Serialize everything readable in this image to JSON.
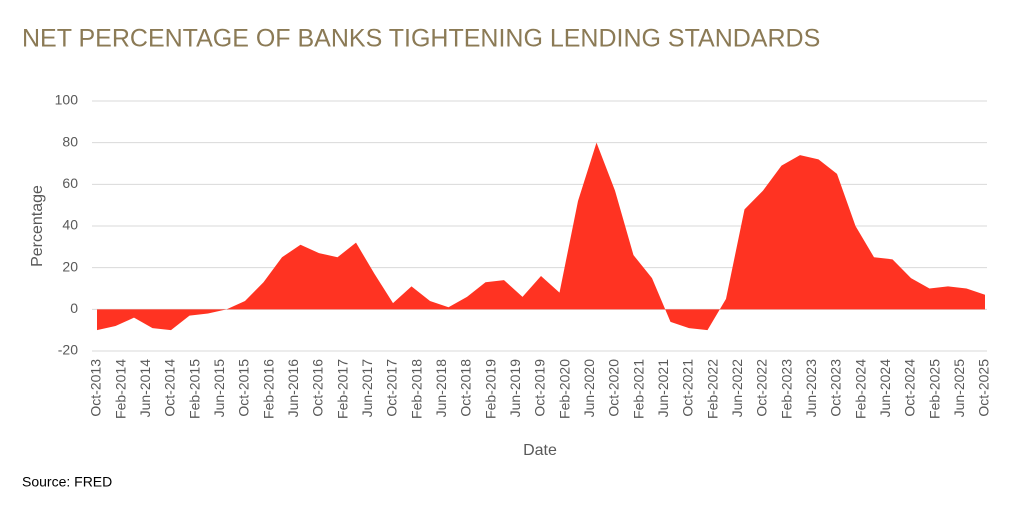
{
  "chart_data": {
    "type": "area",
    "title": "NET PERCENTAGE OF BANKS TIGHTENING LENDING STANDARDS",
    "x_label": "Date",
    "y_label": "Percentage",
    "source": "Source: FRED",
    "color": "#ff3322",
    "grid": true,
    "x": [
      "2013-10",
      "2014-01",
      "2014-04",
      "2014-07",
      "2014-10",
      "2015-01",
      "2015-04",
      "2015-07",
      "2015-10",
      "2016-01",
      "2016-04",
      "2016-07",
      "2016-10",
      "2017-01",
      "2017-04",
      "2017-07",
      "2017-10",
      "2018-01",
      "2018-04",
      "2018-07",
      "2018-10",
      "2019-01",
      "2019-04",
      "2019-07",
      "2019-10",
      "2020-01",
      "2020-04",
      "2020-07",
      "2020-10",
      "2021-01",
      "2021-04",
      "2021-07",
      "2021-10",
      "2022-01",
      "2022-04",
      "2022-07",
      "2022-10",
      "2023-01",
      "2023-04",
      "2023-07",
      "2023-10",
      "2024-01",
      "2024-04",
      "2024-07",
      "2024-10",
      "2025-01",
      "2025-04",
      "2025-07",
      "2025-10"
    ],
    "values": [
      -10,
      -8,
      -4,
      -9,
      -10,
      -3,
      -2,
      0,
      4,
      13,
      25,
      31,
      27,
      25,
      32,
      17,
      3,
      11,
      4,
      1,
      6,
      13,
      14,
      6,
      16,
      8,
      52,
      80,
      57,
      26,
      15,
      -6,
      -9,
      -10,
      5,
      48,
      57,
      69,
      74,
      72,
      65,
      40,
      25,
      24,
      15,
      10,
      11,
      10,
      7
    ],
    "xlim": [
      "2013-10",
      "2025-10"
    ],
    "xticks": [
      {
        "value": "2013-10",
        "label": "Oct-2013"
      },
      {
        "value": "2014-02",
        "label": "Feb-2014"
      },
      {
        "value": "2014-06",
        "label": "Jun-2014"
      },
      {
        "value": "2014-10",
        "label": "Oct-2014"
      },
      {
        "value": "2015-02",
        "label": "Feb-2015"
      },
      {
        "value": "2015-06",
        "label": "Jun-2015"
      },
      {
        "value": "2015-10",
        "label": "Oct-2015"
      },
      {
        "value": "2016-02",
        "label": "Feb-2016"
      },
      {
        "value": "2016-06",
        "label": "Jun-2016"
      },
      {
        "value": "2016-10",
        "label": "Oct-2016"
      },
      {
        "value": "2017-02",
        "label": "Feb-2017"
      },
      {
        "value": "2017-06",
        "label": "Jun-2017"
      },
      {
        "value": "2017-10",
        "label": "Oct-2017"
      },
      {
        "value": "2018-02",
        "label": "Feb-2018"
      },
      {
        "value": "2018-06",
        "label": "Jun-2018"
      },
      {
        "value": "2018-10",
        "label": "Oct-2018"
      },
      {
        "value": "2019-02",
        "label": "Feb-2019"
      },
      {
        "value": "2019-06",
        "label": "Jun-2019"
      },
      {
        "value": "2019-10",
        "label": "Oct-2019"
      },
      {
        "value": "2020-02",
        "label": "Feb-2020"
      },
      {
        "value": "2020-06",
        "label": "Jun-2020"
      },
      {
        "value": "2020-10",
        "label": "Oct-2020"
      },
      {
        "value": "2021-02",
        "label": "Feb-2021"
      },
      {
        "value": "2021-06",
        "label": "Jun-2021"
      },
      {
        "value": "2021-10",
        "label": "Oct-2021"
      },
      {
        "value": "2022-02",
        "label": "Feb-2022"
      },
      {
        "value": "2022-06",
        "label": "Jun-2022"
      },
      {
        "value": "2022-10",
        "label": "Oct-2022"
      },
      {
        "value": "2023-02",
        "label": "Feb-2023"
      },
      {
        "value": "2023-06",
        "label": "Jun-2023"
      },
      {
        "value": "2023-10",
        "label": "Oct-2023"
      },
      {
        "value": "2024-02",
        "label": "Feb-2024"
      },
      {
        "value": "2024-06",
        "label": "Jun-2024"
      },
      {
        "value": "2024-10",
        "label": "Oct-2024"
      },
      {
        "value": "2025-02",
        "label": "Feb-2025"
      },
      {
        "value": "2025-06",
        "label": "Jun-2025"
      },
      {
        "value": "2025-10",
        "label": "Oct-2025"
      }
    ],
    "ylim": [
      -20,
      100
    ],
    "yticks": [
      -20,
      0,
      20,
      40,
      60,
      80,
      100
    ]
  }
}
